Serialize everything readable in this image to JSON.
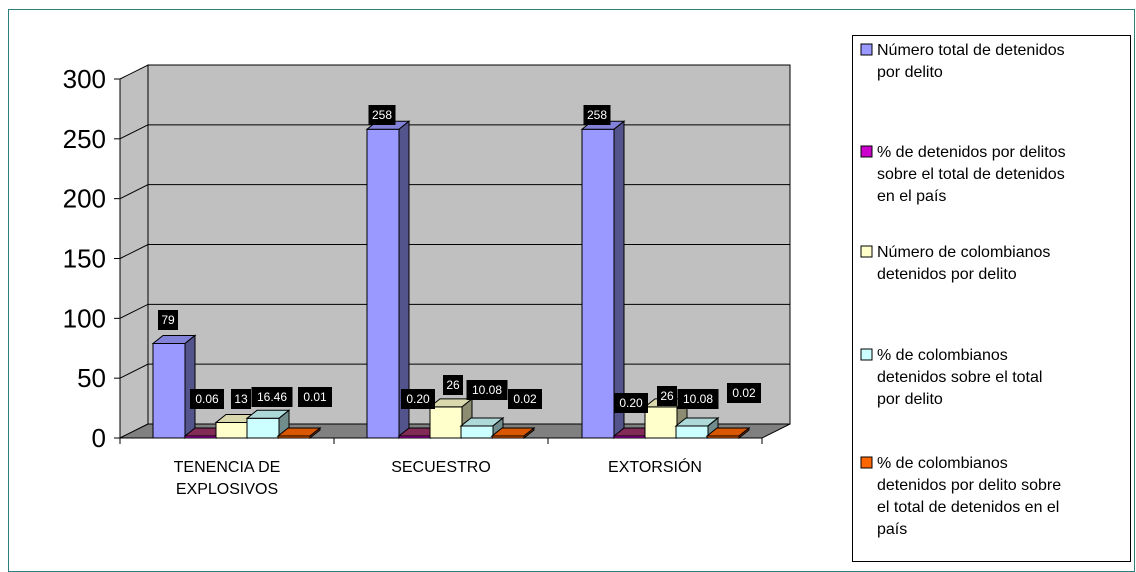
{
  "chart_data": {
    "type": "bar",
    "title": "",
    "xlabel": "",
    "ylabel": "",
    "ylim": [
      0,
      300
    ],
    "yticks": [
      0,
      50,
      100,
      150,
      200,
      250,
      300
    ],
    "grid": true,
    "legend_position": "right",
    "categories": [
      [
        "TENENCIA DE",
        "EXPLOSIVOS"
      ],
      [
        "SECUESTRO"
      ],
      [
        "EXTORSIÓN"
      ]
    ],
    "series": [
      {
        "name": [
          "Número total de detenidos",
          "por delito"
        ],
        "values": [
          79,
          258,
          258
        ],
        "labels": [
          "79",
          "258",
          "258"
        ],
        "color": "#9999FF"
      },
      {
        "name": [
          "% de detenidos por delitos",
          "sobre el total de detenidos",
          "en el país"
        ],
        "values": [
          0.06,
          0.2,
          0.2
        ],
        "labels": [
          "0.06",
          "0.20",
          "0.20"
        ],
        "color": "#993366"
      },
      {
        "name": [
          "Número de colombianos",
          "detenidos por delito"
        ],
        "values": [
          13,
          26,
          26
        ],
        "labels": [
          "13",
          "26",
          "26"
        ],
        "color": "#FFFFCC"
      },
      {
        "name": [
          "% de colombianos",
          "detenidos sobre el total",
          "por delito"
        ],
        "values": [
          16.46,
          10.08,
          10.08
        ],
        "labels": [
          "16.46",
          "10.08",
          "10.08"
        ],
        "color": "#CCFFFF"
      },
      {
        "name": [
          "% de colombianos",
          "detenidos por delito sobre",
          "el total de detenidos en el",
          "país"
        ],
        "values": [
          0.01,
          0.02,
          0.02
        ],
        "labels": [
          "0.01",
          "0.02",
          "0.02"
        ],
        "color": "#FF6600"
      }
    ]
  },
  "colors": {
    "border": "#000000",
    "outer_frame": "#2B7F7F",
    "wall": "#C0C0C0",
    "floor": "#808080",
    "series2_face": "#CC00CC"
  }
}
